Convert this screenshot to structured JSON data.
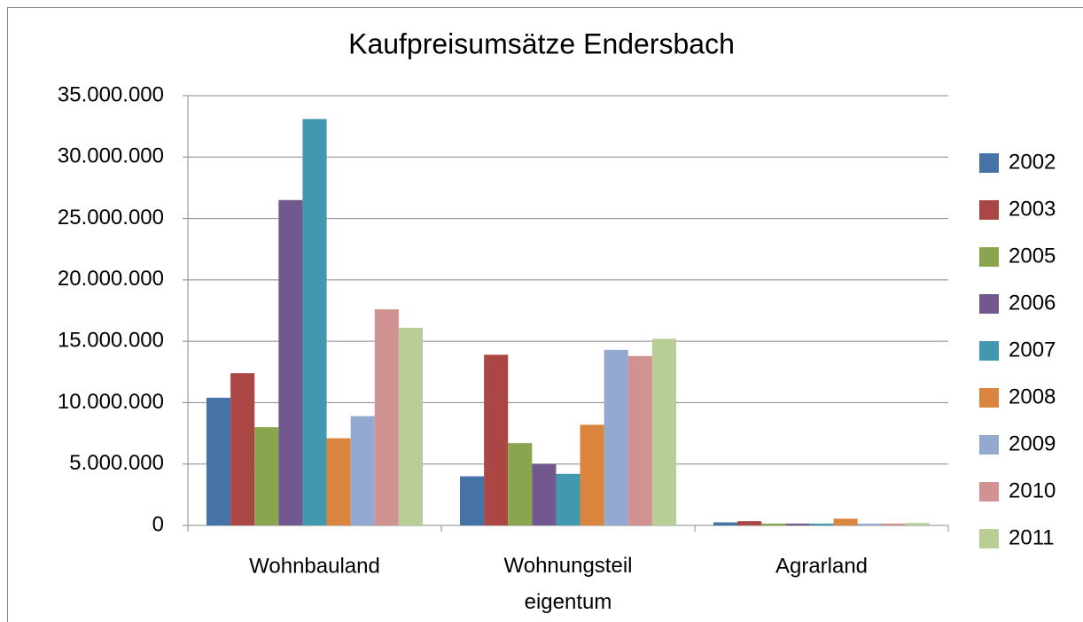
{
  "chart_data": {
    "type": "bar",
    "title": "Kaufpreisumsätze Endersbach",
    "categories": [
      "Wohnbauland",
      "Wohnungsteil eigentum",
      "Agrarland"
    ],
    "series": [
      {
        "name": "2002",
        "color": "#4572a7",
        "values": [
          10400000,
          4000000,
          250000
        ]
      },
      {
        "name": "2003",
        "color": "#aa4643",
        "values": [
          12400000,
          13900000,
          350000
        ]
      },
      {
        "name": "2005",
        "color": "#89a54e",
        "values": [
          8000000,
          6700000,
          150000
        ]
      },
      {
        "name": "2006",
        "color": "#71588f",
        "values": [
          26500000,
          5000000,
          150000
        ]
      },
      {
        "name": "2007",
        "color": "#4198af",
        "values": [
          33100000,
          4200000,
          150000
        ]
      },
      {
        "name": "2008",
        "color": "#db843d",
        "values": [
          7100000,
          8200000,
          550000
        ]
      },
      {
        "name": "2009",
        "color": "#93a9cf",
        "values": [
          8900000,
          14300000,
          150000
        ]
      },
      {
        "name": "2010",
        "color": "#d19392",
        "values": [
          17600000,
          13800000,
          150000
        ]
      },
      {
        "name": "2011",
        "color": "#b9cd96",
        "values": [
          16100000,
          15200000,
          200000
        ]
      }
    ],
    "ylim": [
      0,
      35000000
    ],
    "yticks": [
      0,
      {
        "value": 5000000,
        "label": "5.000.000"
      },
      {
        "value": 10000000,
        "label": "10.000.000"
      },
      {
        "value": 15000000,
        "label": "15.000.000"
      },
      {
        "value": 20000000,
        "label": "20.000.000"
      },
      {
        "value": 25000000,
        "label": "25.000.000"
      },
      {
        "value": 30000000,
        "label": "30.000.000"
      },
      {
        "value": 35000000,
        "label": "35.000.000"
      }
    ],
    "grid": true,
    "legend": "right"
  }
}
